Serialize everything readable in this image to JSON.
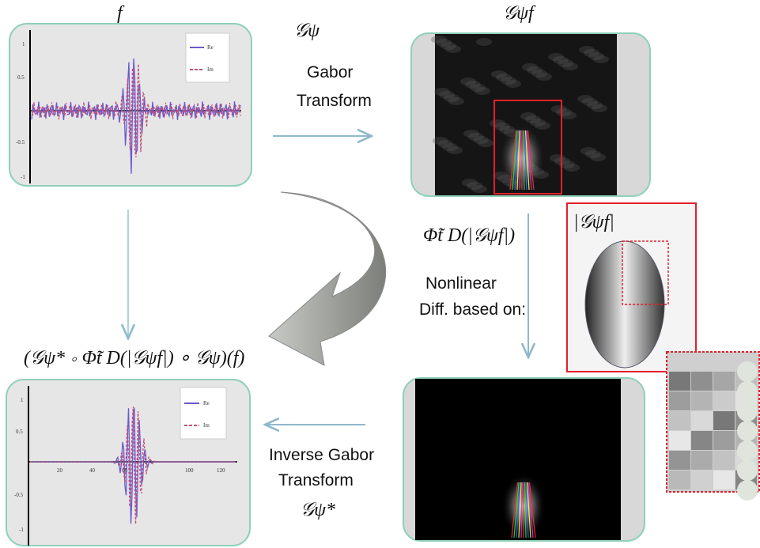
{
  "input_panel": {
    "title": "f",
    "yticks": [
      "1",
      "0.5",
      "-0.5",
      "-1"
    ],
    "legend": [
      "Re",
      "Im"
    ]
  },
  "gabor_step": {
    "symbol": "𝒢ψ",
    "lines": [
      "Gabor",
      "Transform"
    ]
  },
  "transform_panel": {
    "title": "𝒢ψf"
  },
  "magnitude_panel": {
    "title": "|𝒢ψf|"
  },
  "diffusion_step": {
    "symbol": "Φ̃t D(|𝒢ψf|)",
    "lines": [
      "Nonlinear",
      "Diff. based on:"
    ]
  },
  "output_formula": "(𝒢ψ* ∘ Φ̃t D(|𝒢ψf|) ∘ 𝒢ψ)(f)",
  "output_panel": {
    "yticks": [
      "1",
      "0.5",
      "-0.5",
      "-1"
    ],
    "xticks": [
      "20",
      "40",
      "60",
      "100",
      "120"
    ],
    "legend": [
      "Re",
      "Im"
    ]
  },
  "inverse_step": {
    "lines": [
      "Inverse Gabor",
      "Transform"
    ],
    "symbol": "𝒢ψ*"
  }
}
